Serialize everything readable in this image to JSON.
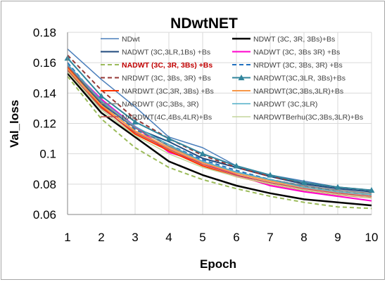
{
  "chart_data": {
    "type": "line",
    "title": "NDwtNET",
    "xlabel": "Epoch",
    "ylabel": "Val_loss",
    "x": [
      1,
      2,
      3,
      4,
      5,
      6,
      7,
      8,
      9,
      10
    ],
    "xlim": [
      1,
      10
    ],
    "ylim": [
      0.06,
      0.18
    ],
    "yticks": [
      0.06,
      0.08,
      0.1,
      0.12,
      0.14,
      0.16,
      0.18
    ],
    "ytick_labels": [
      "0.06",
      "0.08",
      "0.1",
      "0.12",
      "0.14",
      "0.16",
      "0.18"
    ],
    "grid": true,
    "legend_position": "top-right inside plot",
    "series": [
      {
        "name": "NDwt",
        "color": "#4a7ebb",
        "width": 1.5,
        "values": [
          0.169,
          0.149,
          0.131,
          0.111,
          0.104,
          0.092,
          0.086,
          0.082,
          0.078,
          0.076
        ]
      },
      {
        "name": "NDWT (3C, 3R, 3Bs)+Bs",
        "color": "#000000",
        "width": 2.5,
        "values": [
          0.153,
          0.127,
          0.111,
          0.095,
          0.086,
          0.079,
          0.074,
          0.07,
          0.068,
          0.066
        ]
      },
      {
        "name": "NADWT (3C,3LR,1Bs) +Bs",
        "color": "#1f497d",
        "width": 2,
        "values": [
          0.157,
          0.133,
          0.117,
          0.108,
          0.097,
          0.091,
          0.085,
          0.08,
          0.077,
          0.075
        ]
      },
      {
        "name": "NADWT (3C, 3Bs 3R) +Bs",
        "color": "#ff00cc",
        "width": 2,
        "values": [
          0.158,
          0.136,
          0.118,
          0.101,
          0.094,
          0.086,
          0.079,
          0.075,
          0.072,
          0.069
        ]
      },
      {
        "name": "NADWT (3C, 3R, 3Bs) +Bs",
        "color": "#9bbb59",
        "width": 2,
        "dash": "6,4",
        "highlight": true,
        "values": [
          0.151,
          0.123,
          0.104,
          0.091,
          0.083,
          0.077,
          0.072,
          0.068,
          0.065,
          0.064
        ]
      },
      {
        "name": "NRDWT (3C, 3Bs, 3R) +Bs",
        "color": "#1f6fbf",
        "width": 2,
        "dash": "6,4",
        "values": [
          0.16,
          0.134,
          0.116,
          0.106,
          0.096,
          0.089,
          0.083,
          0.079,
          0.075,
          0.073
        ]
      },
      {
        "name": "NRDWT (3C, 3Bs, 3R) +Bs",
        "color": "#953735",
        "width": 2,
        "dash": "6,4",
        "values": [
          0.165,
          0.142,
          0.123,
          0.11,
          0.099,
          0.091,
          0.085,
          0.081,
          0.078,
          0.076
        ]
      },
      {
        "name": "NARDWT(3C,3LR, 3Bs)+Bs",
        "color": "#31859c",
        "width": 2,
        "marker": "triangle",
        "values": [
          0.163,
          0.138,
          0.121,
          0.11,
          0.1,
          0.092,
          0.086,
          0.081,
          0.078,
          0.076
        ]
      },
      {
        "name": "NARDWT (3C,3R, 3Bs) +Bs",
        "color": "#ff3300",
        "width": 2,
        "values": [
          0.157,
          0.131,
          0.113,
          0.102,
          0.092,
          0.085,
          0.08,
          0.076,
          0.073,
          0.071
        ]
      },
      {
        "name": "NARDWT(3C,3Bs,3LR)+Bs",
        "color": "#f79646",
        "width": 2,
        "values": [
          0.156,
          0.132,
          0.115,
          0.104,
          0.094,
          0.087,
          0.082,
          0.078,
          0.075,
          0.073
        ]
      },
      {
        "name": "NARDWT (3C,3Bs, 3R)",
        "color": "#7f7f7f",
        "width": 1.5,
        "values": [
          0.158,
          0.134,
          0.117,
          0.105,
          0.095,
          0.088,
          0.083,
          0.079,
          0.076,
          0.074
        ]
      },
      {
        "name": "NARDWT (3C,3LR)",
        "color": "#4bacc6",
        "width": 1.5,
        "values": [
          0.159,
          0.135,
          0.118,
          0.106,
          0.095,
          0.088,
          0.083,
          0.078,
          0.075,
          0.073
        ]
      },
      {
        "name": "NARDWT(4C,4Bs,4LR)+Bs",
        "color": "#c0504d",
        "width": 1.5,
        "values": [
          0.155,
          0.13,
          0.114,
          0.103,
          0.093,
          0.086,
          0.081,
          0.077,
          0.074,
          0.072
        ]
      },
      {
        "name": "NARDWTBerhu(3C,3Bs,3LR)+Bs",
        "color": "#c3d69b",
        "width": 1.5,
        "values": [
          0.154,
          0.129,
          0.112,
          0.1,
          0.091,
          0.085,
          0.08,
          0.076,
          0.073,
          0.071
        ]
      }
    ]
  }
}
